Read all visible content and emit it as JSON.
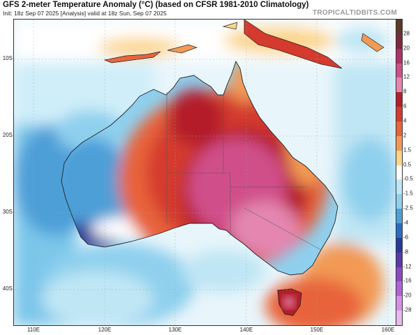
{
  "header": {
    "title": "GFS 2-meter Temperature Anomaly (°C) (based on CFSR 1981-2010 Climatology)",
    "subtitle": "Init: 18z Sep 07 2025   [Analysis]   valid at 18z Sun, Sep 07 2025",
    "watermark": "TROPICALTIDBITS.COM"
  },
  "map": {
    "lat_labels": [
      "10S",
      "20S",
      "30S",
      "40S"
    ],
    "lon_labels": [
      "110E",
      "120E",
      "130E",
      "140E",
      "150E",
      "160E"
    ]
  },
  "colorbar": {
    "labels": [
      "28",
      "20",
      "16",
      "12",
      "8",
      "6",
      "4",
      "2",
      "1.5",
      "0.5",
      "-0.5",
      "-1.5",
      "-2.5",
      "-4",
      "-6",
      "-8",
      "-12",
      "-16",
      "-20",
      "-28"
    ],
    "colors": [
      "#5a3a2a",
      "#7a2a3a",
      "#b0306a",
      "#d04f8a",
      "#e486b0",
      "#b41e2a",
      "#d43a2e",
      "#e8643a",
      "#f29a55",
      "#fbd58a",
      "#ffffff",
      "#bfe6f4",
      "#8fd0ee",
      "#4e9fd8",
      "#2a6cc2",
      "#2a3a9a",
      "#5a3aa8",
      "#8a4ac2",
      "#b262d6",
      "#d490e4",
      "#e8b8f0"
    ]
  }
}
